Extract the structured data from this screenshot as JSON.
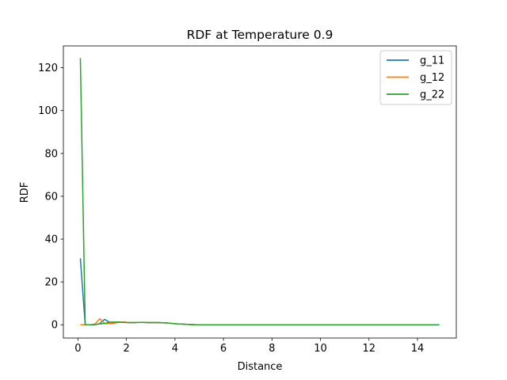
{
  "chart_data": {
    "type": "line",
    "title": "RDF at Temperature 0.9",
    "xlabel": "Distance",
    "ylabel": "RDF",
    "xlim": [
      -0.6,
      15.6
    ],
    "ylim": [
      -6.2,
      130.2
    ],
    "xticks": [
      0,
      2,
      4,
      6,
      8,
      10,
      12,
      14
    ],
    "yticks": [
      0,
      20,
      40,
      60,
      80,
      100,
      120
    ],
    "grid": false,
    "legend_position": "top-right",
    "x": [
      0.1,
      0.3,
      0.5,
      0.7,
      0.9,
      1.1,
      1.3,
      1.5,
      1.7,
      1.9,
      2.1,
      2.3,
      2.5,
      2.7,
      2.9,
      3.1,
      3.3,
      3.5,
      3.7,
      3.9,
      4.1,
      4.3,
      4.5,
      4.7,
      4.9,
      5.1,
      5.3,
      5.5,
      5.7,
      5.9,
      6.1,
      6.3,
      6.5,
      6.7,
      6.9,
      7.1,
      7.3,
      7.5,
      7.7,
      7.9,
      8.1,
      8.3,
      8.5,
      8.7,
      8.9,
      9.1,
      9.3,
      9.5,
      9.7,
      9.9,
      10.1,
      10.3,
      10.5,
      10.7,
      10.9,
      11.1,
      11.3,
      11.5,
      11.7,
      11.9,
      12.1,
      12.3,
      12.5,
      12.7,
      12.9,
      13.1,
      13.3,
      13.5,
      13.7,
      13.9,
      14.1,
      14.3,
      14.5,
      14.7,
      14.9
    ],
    "series": [
      {
        "name": "g_11",
        "color": "#1f77b4",
        "values": [
          31,
          0,
          0,
          0.1,
          0.5,
          2.5,
          1.2,
          1.1,
          1.3,
          1.2,
          1.0,
          1.0,
          1.1,
          1.1,
          1.0,
          1.0,
          1.0,
          0.9,
          0.8,
          0.6,
          0.4,
          0.3,
          0.2,
          0.1,
          0,
          0,
          0,
          0,
          0,
          0,
          0,
          0,
          0,
          0,
          0,
          0,
          0,
          0,
          0,
          0,
          0,
          0,
          0,
          0,
          0,
          0,
          0,
          0,
          0,
          0,
          0,
          0,
          0,
          0,
          0,
          0,
          0,
          0,
          0,
          0,
          0,
          0,
          0,
          0,
          0,
          0,
          0,
          0,
          0,
          0,
          0,
          0,
          0,
          0,
          0
        ]
      },
      {
        "name": "g_12",
        "color": "#ff7f0e",
        "values": [
          0,
          0,
          0,
          0.3,
          2.8,
          0.6,
          0.5,
          0.7,
          1.2,
          1.3,
          1.0,
          1.0,
          1.1,
          1.1,
          1.0,
          1.0,
          1.0,
          0.9,
          0.8,
          0.6,
          0.4,
          0.3,
          0.2,
          0.1,
          0,
          0,
          0,
          0,
          0,
          0,
          0,
          0,
          0,
          0,
          0,
          0,
          0,
          0,
          0,
          0,
          0,
          0,
          0,
          0,
          0,
          0,
          0,
          0,
          0,
          0,
          0,
          0,
          0,
          0,
          0,
          0,
          0,
          0,
          0,
          0,
          0,
          0,
          0,
          0,
          0,
          0,
          0,
          0,
          0,
          0,
          0,
          0,
          0,
          0,
          0
        ]
      },
      {
        "name": "g_22",
        "color": "#2ca02c",
        "values": [
          124.5,
          0,
          0,
          0.1,
          0.4,
          0.6,
          1.2,
          1.3,
          1.2,
          1.1,
          1.0,
          1.0,
          1.1,
          1.1,
          1.0,
          1.0,
          1.0,
          0.9,
          0.8,
          0.6,
          0.4,
          0.3,
          0.2,
          0.1,
          0,
          0,
          0,
          0,
          0,
          0,
          0,
          0,
          0,
          0,
          0,
          0,
          0,
          0,
          0,
          0,
          0,
          0,
          0,
          0,
          0,
          0,
          0,
          0,
          0,
          0,
          0,
          0,
          0,
          0,
          0,
          0,
          0,
          0,
          0,
          0,
          0,
          0,
          0,
          0,
          0,
          0,
          0,
          0,
          0,
          0,
          0,
          0,
          0,
          0,
          0
        ]
      }
    ]
  }
}
